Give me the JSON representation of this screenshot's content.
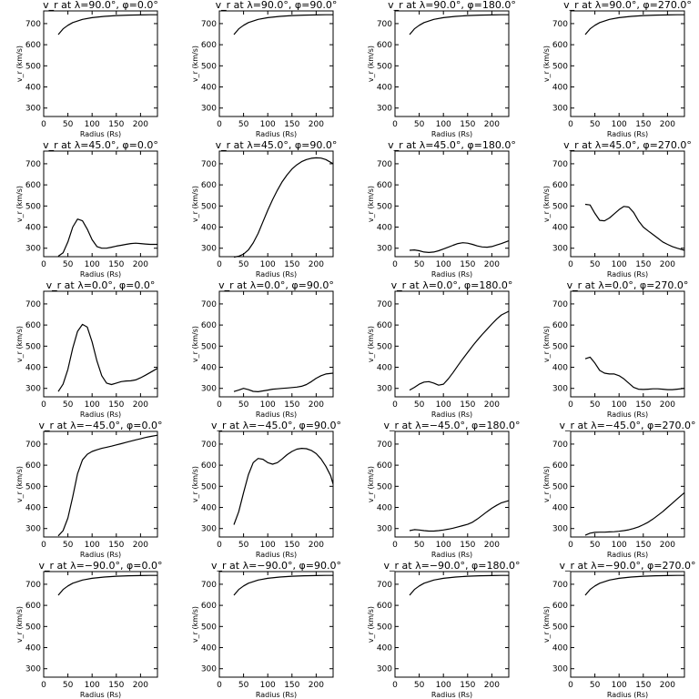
{
  "chart_data": [
    {
      "type": "line",
      "title": "v_r at λ=90.0°, φ=0.0°",
      "xlabel": "Radius (Rs)",
      "ylabel": "v_r (km/s)",
      "xlim": [
        0,
        235
      ],
      "ylim": [
        260,
        760
      ],
      "xticks": [
        0,
        50,
        100,
        150,
        200
      ],
      "yticks": [
        300,
        400,
        500,
        600,
        700
      ],
      "x": [
        30,
        40,
        50,
        60,
        80,
        100,
        125,
        150,
        175,
        200,
        220,
        235
      ],
      "y": [
        648,
        675,
        692,
        705,
        720,
        728,
        734,
        738,
        740,
        741,
        742,
        742
      ]
    },
    {
      "type": "line",
      "title": "v_r at λ=90.0°, φ=90.0°",
      "xlabel": "Radius (Rs)",
      "ylabel": "v_r (km/s)",
      "xlim": [
        0,
        235
      ],
      "ylim": [
        260,
        760
      ],
      "xticks": [
        0,
        50,
        100,
        150,
        200
      ],
      "yticks": [
        300,
        400,
        500,
        600,
        700
      ],
      "x": [
        30,
        40,
        50,
        60,
        80,
        100,
        125,
        150,
        175,
        200,
        220,
        235
      ],
      "y": [
        648,
        675,
        692,
        705,
        720,
        728,
        734,
        738,
        740,
        741,
        742,
        742
      ]
    },
    {
      "type": "line",
      "title": "v_r at λ=90.0°, φ=180.0°",
      "xlabel": "Radius (Rs)",
      "ylabel": "v_r (km/s)",
      "xlim": [
        0,
        235
      ],
      "ylim": [
        260,
        760
      ],
      "xticks": [
        0,
        50,
        100,
        150,
        200
      ],
      "yticks": [
        300,
        400,
        500,
        600,
        700
      ],
      "x": [
        30,
        40,
        50,
        60,
        80,
        100,
        125,
        150,
        175,
        200,
        220,
        235
      ],
      "y": [
        648,
        675,
        692,
        705,
        720,
        728,
        734,
        738,
        740,
        741,
        742,
        742
      ]
    },
    {
      "type": "line",
      "title": "v_r at λ=90.0°, φ=270.0°",
      "xlabel": "Radius (Rs)",
      "ylabel": "v_r (km/s)",
      "xlim": [
        0,
        235
      ],
      "ylim": [
        260,
        760
      ],
      "xticks": [
        0,
        50,
        100,
        150,
        200
      ],
      "yticks": [
        300,
        400,
        500,
        600,
        700
      ],
      "x": [
        30,
        40,
        50,
        60,
        80,
        100,
        125,
        150,
        175,
        200,
        220,
        235
      ],
      "y": [
        648,
        675,
        692,
        705,
        720,
        728,
        734,
        738,
        740,
        741,
        742,
        742
      ]
    },
    {
      "type": "line",
      "title": "v_r at λ=45.0°, φ=0.0°",
      "xlabel": "Radius (Rs)",
      "ylabel": "v_r (km/s)",
      "xlim": [
        0,
        235
      ],
      "ylim": [
        260,
        760
      ],
      "xticks": [
        0,
        50,
        100,
        150,
        200
      ],
      "yticks": [
        300,
        400,
        500,
        600,
        700
      ],
      "x": [
        30,
        40,
        50,
        60,
        70,
        80,
        90,
        100,
        110,
        120,
        130,
        140,
        150,
        160,
        170,
        180,
        190,
        200,
        210,
        220,
        235
      ],
      "y": [
        262,
        278,
        330,
        400,
        438,
        430,
        390,
        340,
        308,
        300,
        300,
        305,
        310,
        314,
        318,
        322,
        324,
        322,
        320,
        318,
        318
      ]
    },
    {
      "type": "line",
      "title": "v_r at λ=45.0°, φ=90.0°",
      "xlabel": "Radius (Rs)",
      "ylabel": "v_r (km/s)",
      "xlim": [
        0,
        235
      ],
      "ylim": [
        260,
        760
      ],
      "xticks": [
        0,
        50,
        100,
        150,
        200
      ],
      "yticks": [
        300,
        400,
        500,
        600,
        700
      ],
      "x": [
        30,
        40,
        50,
        60,
        70,
        80,
        90,
        100,
        110,
        120,
        130,
        140,
        150,
        160,
        170,
        180,
        190,
        200,
        210,
        220,
        235
      ],
      "y": [
        258,
        262,
        272,
        292,
        325,
        370,
        425,
        480,
        530,
        575,
        615,
        648,
        675,
        695,
        710,
        720,
        726,
        728,
        727,
        720,
        700
      ]
    },
    {
      "type": "line",
      "title": "v_r at λ=45.0°, φ=180.0°",
      "xlabel": "Radius (Rs)",
      "ylabel": "v_r (km/s)",
      "xlim": [
        0,
        235
      ],
      "ylim": [
        260,
        760
      ],
      "xticks": [
        0,
        50,
        100,
        150,
        200
      ],
      "yticks": [
        300,
        400,
        500,
        600,
        700
      ],
      "x": [
        30,
        40,
        50,
        60,
        70,
        80,
        90,
        100,
        110,
        120,
        130,
        140,
        150,
        160,
        170,
        180,
        190,
        200,
        210,
        220,
        235
      ],
      "y": [
        290,
        292,
        288,
        282,
        280,
        282,
        288,
        296,
        305,
        314,
        322,
        326,
        324,
        318,
        311,
        306,
        305,
        308,
        315,
        322,
        335
      ]
    },
    {
      "type": "line",
      "title": "v_r at λ=45.0°, φ=270.0°",
      "xlabel": "Radius (Rs)",
      "ylabel": "v_r (km/s)",
      "xlim": [
        0,
        235
      ],
      "ylim": [
        260,
        760
      ],
      "xticks": [
        0,
        50,
        100,
        150,
        200
      ],
      "yticks": [
        300,
        400,
        500,
        600,
        700
      ],
      "x": [
        30,
        40,
        50,
        60,
        70,
        80,
        90,
        100,
        110,
        120,
        130,
        140,
        150,
        160,
        170,
        180,
        190,
        200,
        210,
        220,
        235
      ],
      "y": [
        508,
        505,
        465,
        432,
        430,
        443,
        463,
        483,
        498,
        495,
        470,
        430,
        400,
        382,
        365,
        348,
        330,
        318,
        308,
        300,
        290
      ]
    },
    {
      "type": "line",
      "title": "v_r at λ=0.0°, φ=0.0°",
      "xlabel": "Radius (Rs)",
      "ylabel": "v_r (km/s)",
      "xlim": [
        0,
        235
      ],
      "ylim": [
        260,
        760
      ],
      "xticks": [
        0,
        50,
        100,
        150,
        200
      ],
      "yticks": [
        300,
        400,
        500,
        600,
        700
      ],
      "x": [
        30,
        40,
        50,
        60,
        70,
        80,
        90,
        100,
        110,
        120,
        130,
        140,
        150,
        160,
        170,
        180,
        190,
        200,
        210,
        220,
        235
      ],
      "y": [
        285,
        320,
        390,
        490,
        570,
        603,
        590,
        520,
        430,
        360,
        325,
        318,
        325,
        332,
        335,
        336,
        340,
        350,
        362,
        375,
        395
      ]
    },
    {
      "type": "line",
      "title": "v_r at λ=0.0°, φ=90.0°",
      "xlabel": "Radius (Rs)",
      "ylabel": "v_r (km/s)",
      "xlim": [
        0,
        235
      ],
      "ylim": [
        260,
        760
      ],
      "xticks": [
        0,
        50,
        100,
        150,
        200
      ],
      "yticks": [
        300,
        400,
        500,
        600,
        700
      ],
      "x": [
        30,
        40,
        50,
        60,
        70,
        80,
        90,
        100,
        110,
        120,
        130,
        140,
        150,
        160,
        170,
        180,
        190,
        200,
        210,
        220,
        235
      ],
      "y": [
        285,
        292,
        300,
        294,
        286,
        284,
        288,
        292,
        296,
        298,
        300,
        302,
        304,
        306,
        310,
        318,
        332,
        348,
        360,
        368,
        372
      ]
    },
    {
      "type": "line",
      "title": "v_r at λ=0.0°, φ=180.0°",
      "xlabel": "Radius (Rs)",
      "ylabel": "v_r (km/s)",
      "xlim": [
        0,
        235
      ],
      "ylim": [
        260,
        760
      ],
      "xticks": [
        0,
        50,
        100,
        150,
        200
      ],
      "yticks": [
        300,
        400,
        500,
        600,
        700
      ],
      "x": [
        30,
        40,
        50,
        60,
        70,
        80,
        90,
        100,
        110,
        120,
        130,
        140,
        150,
        160,
        170,
        180,
        190,
        200,
        210,
        220,
        235
      ],
      "y": [
        292,
        305,
        320,
        330,
        332,
        325,
        315,
        320,
        345,
        375,
        408,
        440,
        470,
        500,
        528,
        555,
        580,
        605,
        628,
        648,
        665
      ]
    },
    {
      "type": "line",
      "title": "v_r at λ=0.0°, φ=270.0°",
      "xlabel": "Radius (Rs)",
      "ylabel": "v_r (km/s)",
      "xlim": [
        0,
        235
      ],
      "ylim": [
        260,
        760
      ],
      "xticks": [
        0,
        50,
        100,
        150,
        200
      ],
      "yticks": [
        300,
        400,
        500,
        600,
        700
      ],
      "x": [
        30,
        40,
        50,
        60,
        70,
        80,
        90,
        100,
        110,
        120,
        130,
        140,
        150,
        160,
        170,
        180,
        190,
        200,
        210,
        220,
        235
      ],
      "y": [
        440,
        448,
        420,
        385,
        372,
        368,
        368,
        360,
        345,
        325,
        305,
        296,
        295,
        296,
        298,
        298,
        296,
        294,
        294,
        296,
        300
      ]
    },
    {
      "type": "line",
      "title": "v_r at λ=−45.0°, φ=0.0°",
      "xlabel": "Radius (Rs)",
      "ylabel": "v_r (km/s)",
      "xlim": [
        0,
        235
      ],
      "ylim": [
        260,
        760
      ],
      "xticks": [
        0,
        50,
        100,
        150,
        200
      ],
      "yticks": [
        300,
        400,
        500,
        600,
        700
      ],
      "x": [
        30,
        40,
        50,
        60,
        70,
        80,
        90,
        100,
        110,
        120,
        130,
        140,
        150,
        160,
        170,
        180,
        190,
        200,
        210,
        220,
        235
      ],
      "y": [
        265,
        290,
        350,
        450,
        560,
        625,
        652,
        665,
        673,
        680,
        685,
        690,
        696,
        702,
        708,
        714,
        720,
        725,
        731,
        736,
        742
      ]
    },
    {
      "type": "line",
      "title": "v_r at λ=−45.0°, φ=90.0°",
      "xlabel": "Radius (Rs)",
      "ylabel": "v_r (km/s)",
      "xlim": [
        0,
        235
      ],
      "ylim": [
        260,
        760
      ],
      "xticks": [
        0,
        50,
        100,
        150,
        200
      ],
      "yticks": [
        300,
        400,
        500,
        600,
        700
      ],
      "x": [
        30,
        40,
        50,
        60,
        70,
        80,
        90,
        100,
        110,
        120,
        130,
        140,
        150,
        160,
        170,
        180,
        190,
        200,
        210,
        220,
        230,
        235
      ],
      "y": [
        318,
        380,
        470,
        555,
        612,
        632,
        628,
        612,
        605,
        612,
        630,
        650,
        665,
        676,
        680,
        678,
        670,
        655,
        630,
        595,
        550,
        510
      ]
    },
    {
      "type": "line",
      "title": "v_r at λ=−45.0°, φ=180.0°",
      "xlabel": "Radius (Rs)",
      "ylabel": "v_r (km/s)",
      "xlim": [
        0,
        235
      ],
      "ylim": [
        260,
        760
      ],
      "xticks": [
        0,
        50,
        100,
        150,
        200
      ],
      "yticks": [
        300,
        400,
        500,
        600,
        700
      ],
      "x": [
        30,
        40,
        50,
        60,
        70,
        80,
        90,
        100,
        110,
        120,
        130,
        140,
        150,
        160,
        170,
        180,
        190,
        200,
        210,
        220,
        235
      ],
      "y": [
        290,
        295,
        293,
        290,
        288,
        288,
        290,
        293,
        297,
        302,
        308,
        314,
        320,
        330,
        345,
        362,
        380,
        396,
        410,
        422,
        432
      ]
    },
    {
      "type": "line",
      "title": "v_r at λ=−45.0°, φ=270.0°",
      "xlabel": "Radius (Rs)",
      "ylabel": "v_r (km/s)",
      "xlim": [
        0,
        235
      ],
      "ylim": [
        260,
        760
      ],
      "xticks": [
        0,
        50,
        100,
        150,
        200
      ],
      "yticks": [
        300,
        400,
        500,
        600,
        700
      ],
      "x": [
        30,
        40,
        50,
        60,
        70,
        80,
        90,
        100,
        110,
        120,
        130,
        140,
        150,
        160,
        170,
        180,
        190,
        200,
        210,
        220,
        235
      ],
      "y": [
        268,
        278,
        282,
        283,
        283,
        284,
        285,
        287,
        290,
        294,
        300,
        308,
        318,
        330,
        345,
        362,
        380,
        400,
        420,
        440,
        470
      ]
    },
    {
      "type": "line",
      "title": "v_r at λ=−90.0°, φ=0.0°",
      "xlabel": "Radius (Rs)",
      "ylabel": "v_r (km/s)",
      "xlim": [
        0,
        235
      ],
      "ylim": [
        260,
        760
      ],
      "xticks": [
        0,
        50,
        100,
        150,
        200
      ],
      "yticks": [
        300,
        400,
        500,
        600,
        700
      ],
      "x": [
        30,
        40,
        50,
        60,
        80,
        100,
        125,
        150,
        175,
        200,
        220,
        235
      ],
      "y": [
        648,
        675,
        692,
        705,
        720,
        728,
        734,
        738,
        740,
        741,
        742,
        742
      ]
    },
    {
      "type": "line",
      "title": "v_r at λ=−90.0°, φ=90.0°",
      "xlabel": "Radius (Rs)",
      "ylabel": "v_r (km/s)",
      "xlim": [
        0,
        235
      ],
      "ylim": [
        260,
        760
      ],
      "xticks": [
        0,
        50,
        100,
        150,
        200
      ],
      "yticks": [
        300,
        400,
        500,
        600,
        700
      ],
      "x": [
        30,
        40,
        50,
        60,
        80,
        100,
        125,
        150,
        175,
        200,
        220,
        235
      ],
      "y": [
        648,
        675,
        692,
        705,
        720,
        728,
        734,
        738,
        740,
        741,
        742,
        742
      ]
    },
    {
      "type": "line",
      "title": "v_r at λ=−90.0°, φ=180.0°",
      "xlabel": "Radius (Rs)",
      "ylabel": "v_r (km/s)",
      "xlim": [
        0,
        235
      ],
      "ylim": [
        260,
        760
      ],
      "xticks": [
        0,
        50,
        100,
        150,
        200
      ],
      "yticks": [
        300,
        400,
        500,
        600,
        700
      ],
      "x": [
        30,
        40,
        50,
        60,
        80,
        100,
        125,
        150,
        175,
        200,
        220,
        235
      ],
      "y": [
        648,
        675,
        692,
        705,
        720,
        728,
        734,
        738,
        740,
        741,
        742,
        742
      ]
    },
    {
      "type": "line",
      "title": "v_r at λ=−90.0°, φ=270.0°",
      "xlabel": "Radius (Rs)",
      "ylabel": "v_r (km/s)",
      "xlim": [
        0,
        235
      ],
      "ylim": [
        260,
        760
      ],
      "xticks": [
        0,
        50,
        100,
        150,
        200
      ],
      "yticks": [
        300,
        400,
        500,
        600,
        700
      ],
      "x": [
        30,
        40,
        50,
        60,
        80,
        100,
        125,
        150,
        175,
        200,
        220,
        235
      ],
      "y": [
        648,
        675,
        692,
        705,
        720,
        728,
        734,
        738,
        740,
        741,
        742,
        742
      ]
    }
  ]
}
